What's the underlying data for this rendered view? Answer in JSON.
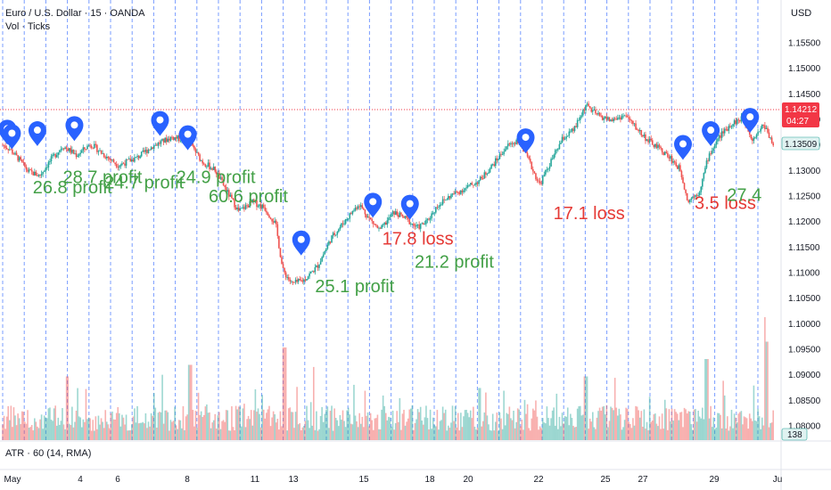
{
  "header": {
    "symbol_line": "Euro / U.S. Dollar · 15 · OANDA",
    "volume_line": "Vol · Ticks",
    "currency": "USD"
  },
  "indicator": {
    "label": "ATR · 60 (14, RMA)"
  },
  "colors": {
    "up": "#26a69a",
    "down": "#ef5350",
    "profit": "#43a047",
    "loss": "#e53935",
    "marker": "#2962ff",
    "session_line": "#4d7cff",
    "price_line": "#f23645",
    "last_bg": "#e0f2f1"
  },
  "chart_data": {
    "type": "candlestick",
    "price_axis": {
      "ticks": [
        "1.15500",
        "1.15000",
        "1.14500",
        "1.14000",
        "1.13500",
        "1.13000",
        "1.12500",
        "1.12000",
        "1.11500",
        "1.11000",
        "1.10500",
        "1.10000",
        "1.09500",
        "1.09000",
        "1.08500",
        "1.08000"
      ],
      "range": [
        1.0779,
        1.1598
      ]
    },
    "time_axis": {
      "ticks": [
        "May",
        "4",
        "6",
        "8",
        "11",
        "13",
        "15",
        "18",
        "20",
        "22",
        "25",
        "27",
        "29",
        "Ju"
      ]
    },
    "price_markers": {
      "line_price": 1.14212,
      "line_price_label": "1.14212",
      "countdown": "04:27",
      "last_price": 1.13509,
      "last_price_label": "1.13509"
    },
    "volume_marker": "138",
    "price_path": [
      {
        "day": 0,
        "price": 1.135
      },
      {
        "day": 0.3,
        "price": 1.1342
      },
      {
        "day": 0.7,
        "price": 1.1322
      },
      {
        "day": 1.1,
        "price": 1.1298
      },
      {
        "day": 1.6,
        "price": 1.129
      },
      {
        "day": 2.1,
        "price": 1.1322
      },
      {
        "day": 2.6,
        "price": 1.1348
      },
      {
        "day": 3.2,
        "price": 1.133
      },
      {
        "day": 3.8,
        "price": 1.1352
      },
      {
        "day": 4.4,
        "price": 1.133
      },
      {
        "day": 5.0,
        "price": 1.131
      },
      {
        "day": 5.8,
        "price": 1.1325
      },
      {
        "day": 6.5,
        "price": 1.1348
      },
      {
        "day": 7.3,
        "price": 1.1365
      },
      {
        "day": 8.0,
        "price": 1.136
      },
      {
        "day": 8.6,
        "price": 1.1318
      },
      {
        "day": 9.2,
        "price": 1.13
      },
      {
        "day": 9.7,
        "price": 1.1258
      },
      {
        "day": 10.2,
        "price": 1.122
      },
      {
        "day": 10.8,
        "price": 1.1238
      },
      {
        "day": 11.3,
        "price": 1.1228
      },
      {
        "day": 11.8,
        "price": 1.1195
      },
      {
        "day": 12.1,
        "price": 1.1105
      },
      {
        "day": 12.5,
        "price": 1.1078
      },
      {
        "day": 13.0,
        "price": 1.1085
      },
      {
        "day": 13.6,
        "price": 1.1112
      },
      {
        "day": 14.2,
        "price": 1.1168
      },
      {
        "day": 14.8,
        "price": 1.1202
      },
      {
        "day": 15.4,
        "price": 1.1235
      },
      {
        "day": 15.8,
        "price": 1.1208
      },
      {
        "day": 16.3,
        "price": 1.1182
      },
      {
        "day": 16.9,
        "price": 1.1218
      },
      {
        "day": 17.4,
        "price": 1.1206
      },
      {
        "day": 17.9,
        "price": 1.1188
      },
      {
        "day": 18.3,
        "price": 1.1198
      },
      {
        "day": 18.8,
        "price": 1.1232
      },
      {
        "day": 19.4,
        "price": 1.1252
      },
      {
        "day": 20.0,
        "price": 1.1265
      },
      {
        "day": 20.6,
        "price": 1.128
      },
      {
        "day": 21.2,
        "price": 1.1312
      },
      {
        "day": 21.8,
        "price": 1.1348
      },
      {
        "day": 22.3,
        "price": 1.136
      },
      {
        "day": 22.8,
        "price": 1.1312
      },
      {
        "day": 23.2,
        "price": 1.1272
      },
      {
        "day": 23.7,
        "price": 1.1318
      },
      {
        "day": 24.2,
        "price": 1.1362
      },
      {
        "day": 24.7,
        "price": 1.138
      },
      {
        "day": 25.2,
        "price": 1.1428
      },
      {
        "day": 25.7,
        "price": 1.1408
      },
      {
        "day": 26.3,
        "price": 1.1398
      },
      {
        "day": 26.9,
        "price": 1.1408
      },
      {
        "day": 27.4,
        "price": 1.1382
      },
      {
        "day": 27.9,
        "price": 1.1358
      },
      {
        "day": 28.4,
        "price": 1.1342
      },
      {
        "day": 28.9,
        "price": 1.1322
      },
      {
        "day": 29.3,
        "price": 1.13
      },
      {
        "day": 29.6,
        "price": 1.124
      },
      {
        "day": 30.1,
        "price": 1.1258
      },
      {
        "day": 30.5,
        "price": 1.1328
      },
      {
        "day": 31.0,
        "price": 1.1368
      },
      {
        "day": 31.5,
        "price": 1.1392
      },
      {
        "day": 32.0,
        "price": 1.1402
      },
      {
        "day": 32.4,
        "price": 1.1362
      },
      {
        "day": 32.9,
        "price": 1.139
      },
      {
        "day": 33.3,
        "price": 1.1352
      }
    ],
    "volume_spikes": [
      {
        "day": 2.8,
        "level": 0.55
      },
      {
        "day": 8.1,
        "level": 0.65
      },
      {
        "day": 12.2,
        "level": 0.8
      },
      {
        "day": 20.6,
        "level": 0.45
      },
      {
        "day": 25.2,
        "level": 0.55
      },
      {
        "day": 30.4,
        "level": 0.7
      },
      {
        "day": 33.0,
        "level": 0.85
      }
    ],
    "entry_markers": [
      {
        "day": 0.2,
        "price": 1.1375
      },
      {
        "day": 0.4,
        "price": 1.1366
      },
      {
        "day": 1.5,
        "price": 1.1372
      },
      {
        "day": 3.1,
        "price": 1.1382
      },
      {
        "day": 6.8,
        "price": 1.1392
      },
      {
        "day": 8.0,
        "price": 1.1364
      },
      {
        "day": 12.9,
        "price": 1.1158
      },
      {
        "day": 16.0,
        "price": 1.1232
      },
      {
        "day": 17.6,
        "price": 1.1228
      },
      {
        "day": 22.6,
        "price": 1.1358
      },
      {
        "day": 29.4,
        "price": 1.1345
      },
      {
        "day": 30.6,
        "price": 1.1372
      },
      {
        "day": 32.3,
        "price": 1.1398
      }
    ],
    "trade_labels": [
      {
        "text": "28.7 profit",
        "kind": "profit",
        "day": 2.6,
        "price": 1.1275
      },
      {
        "text": "26.8 profit",
        "kind": "profit",
        "day": 1.3,
        "price": 1.1255
      },
      {
        "text": "24.7 profit",
        "kind": "profit",
        "day": 4.4,
        "price": 1.1265
      },
      {
        "text": "24.9 profit",
        "kind": "profit",
        "day": 7.5,
        "price": 1.1275
      },
      {
        "text": "60.6 profit",
        "kind": "profit",
        "day": 8.9,
        "price": 1.1238
      },
      {
        "text": "25.1 profit",
        "kind": "profit",
        "day": 13.5,
        "price": 1.1062
      },
      {
        "text": "17.8 loss",
        "kind": "loss",
        "day": 16.4,
        "price": 1.1155
      },
      {
        "text": "21.2 profit",
        "kind": "profit",
        "day": 17.8,
        "price": 1.111
      },
      {
        "text": "17.1 loss",
        "kind": "loss",
        "day": 23.8,
        "price": 1.1205
      },
      {
        "text": "3.5 loss",
        "kind": "loss",
        "day": 29.9,
        "price": 1.1225
      },
      {
        "text": "27.4",
        "kind": "profit",
        "day": 31.3,
        "price": 1.124
      }
    ]
  }
}
